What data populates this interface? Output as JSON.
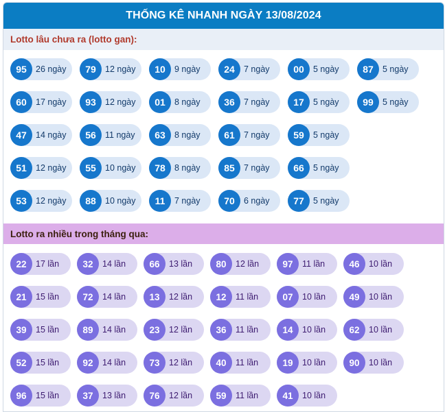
{
  "header": {
    "title": "THỐNG KÊ NHANH NGÀY 13/08/2024"
  },
  "gan": {
    "title": "Lotto lâu chưa ra (lotto gan):",
    "rows": [
      [
        {
          "num": "95",
          "count": "26 ngày"
        },
        {
          "num": "79",
          "count": "12 ngày"
        },
        {
          "num": "10",
          "count": "9 ngày"
        },
        {
          "num": "24",
          "count": "7 ngày"
        },
        {
          "num": "00",
          "count": "5 ngày"
        },
        {
          "num": "87",
          "count": "5 ngày"
        }
      ],
      [
        {
          "num": "60",
          "count": "17 ngày"
        },
        {
          "num": "93",
          "count": "12 ngày"
        },
        {
          "num": "01",
          "count": "8 ngày"
        },
        {
          "num": "36",
          "count": "7 ngày"
        },
        {
          "num": "17",
          "count": "5 ngày"
        },
        {
          "num": "99",
          "count": "5 ngày"
        }
      ],
      [
        {
          "num": "47",
          "count": "14 ngày"
        },
        {
          "num": "56",
          "count": "11 ngày"
        },
        {
          "num": "63",
          "count": "8 ngày"
        },
        {
          "num": "61",
          "count": "7 ngày"
        },
        {
          "num": "59",
          "count": "5 ngày"
        }
      ],
      [
        {
          "num": "51",
          "count": "12 ngày"
        },
        {
          "num": "55",
          "count": "10 ngày"
        },
        {
          "num": "78",
          "count": "8 ngày"
        },
        {
          "num": "85",
          "count": "7 ngày"
        },
        {
          "num": "66",
          "count": "5 ngày"
        }
      ],
      [
        {
          "num": "53",
          "count": "12 ngày"
        },
        {
          "num": "88",
          "count": "10 ngày"
        },
        {
          "num": "11",
          "count": "7 ngày"
        },
        {
          "num": "70",
          "count": "6 ngày"
        },
        {
          "num": "77",
          "count": "5 ngày"
        }
      ]
    ]
  },
  "frequent": {
    "title": "Lotto ra nhiều trong tháng qua:",
    "rows": [
      [
        {
          "num": "22",
          "count": "17 lần"
        },
        {
          "num": "32",
          "count": "14 lần"
        },
        {
          "num": "66",
          "count": "13 lần"
        },
        {
          "num": "80",
          "count": "12 lần"
        },
        {
          "num": "97",
          "count": "11 lần"
        },
        {
          "num": "46",
          "count": "10 lần"
        }
      ],
      [
        {
          "num": "21",
          "count": "15 lần"
        },
        {
          "num": "72",
          "count": "14 lần"
        },
        {
          "num": "13",
          "count": "12 lần"
        },
        {
          "num": "12",
          "count": "11 lần"
        },
        {
          "num": "07",
          "count": "10 lần"
        },
        {
          "num": "49",
          "count": "10 lần"
        }
      ],
      [
        {
          "num": "39",
          "count": "15 lần"
        },
        {
          "num": "89",
          "count": "14 lần"
        },
        {
          "num": "23",
          "count": "12 lần"
        },
        {
          "num": "36",
          "count": "11 lần"
        },
        {
          "num": "14",
          "count": "10 lần"
        },
        {
          "num": "62",
          "count": "10 lần"
        }
      ],
      [
        {
          "num": "52",
          "count": "15 lần"
        },
        {
          "num": "92",
          "count": "14 lần"
        },
        {
          "num": "73",
          "count": "12 lần"
        },
        {
          "num": "40",
          "count": "11 lần"
        },
        {
          "num": "19",
          "count": "10 lần"
        },
        {
          "num": "90",
          "count": "10 lần"
        }
      ],
      [
        {
          "num": "96",
          "count": "15 lần"
        },
        {
          "num": "37",
          "count": "13 lần"
        },
        {
          "num": "76",
          "count": "12 lần"
        },
        {
          "num": "59",
          "count": "11 lần"
        },
        {
          "num": "41",
          "count": "10 lần"
        }
      ]
    ]
  },
  "colors": {
    "header_bg": "#0b7dc3",
    "gan_ball": "#1677cc",
    "gan_pill": "#dbe7f6",
    "freq_ball": "#7b6fe0",
    "freq_pill": "#dcd7f2",
    "freq_title_bg": "#dcaee9"
  }
}
